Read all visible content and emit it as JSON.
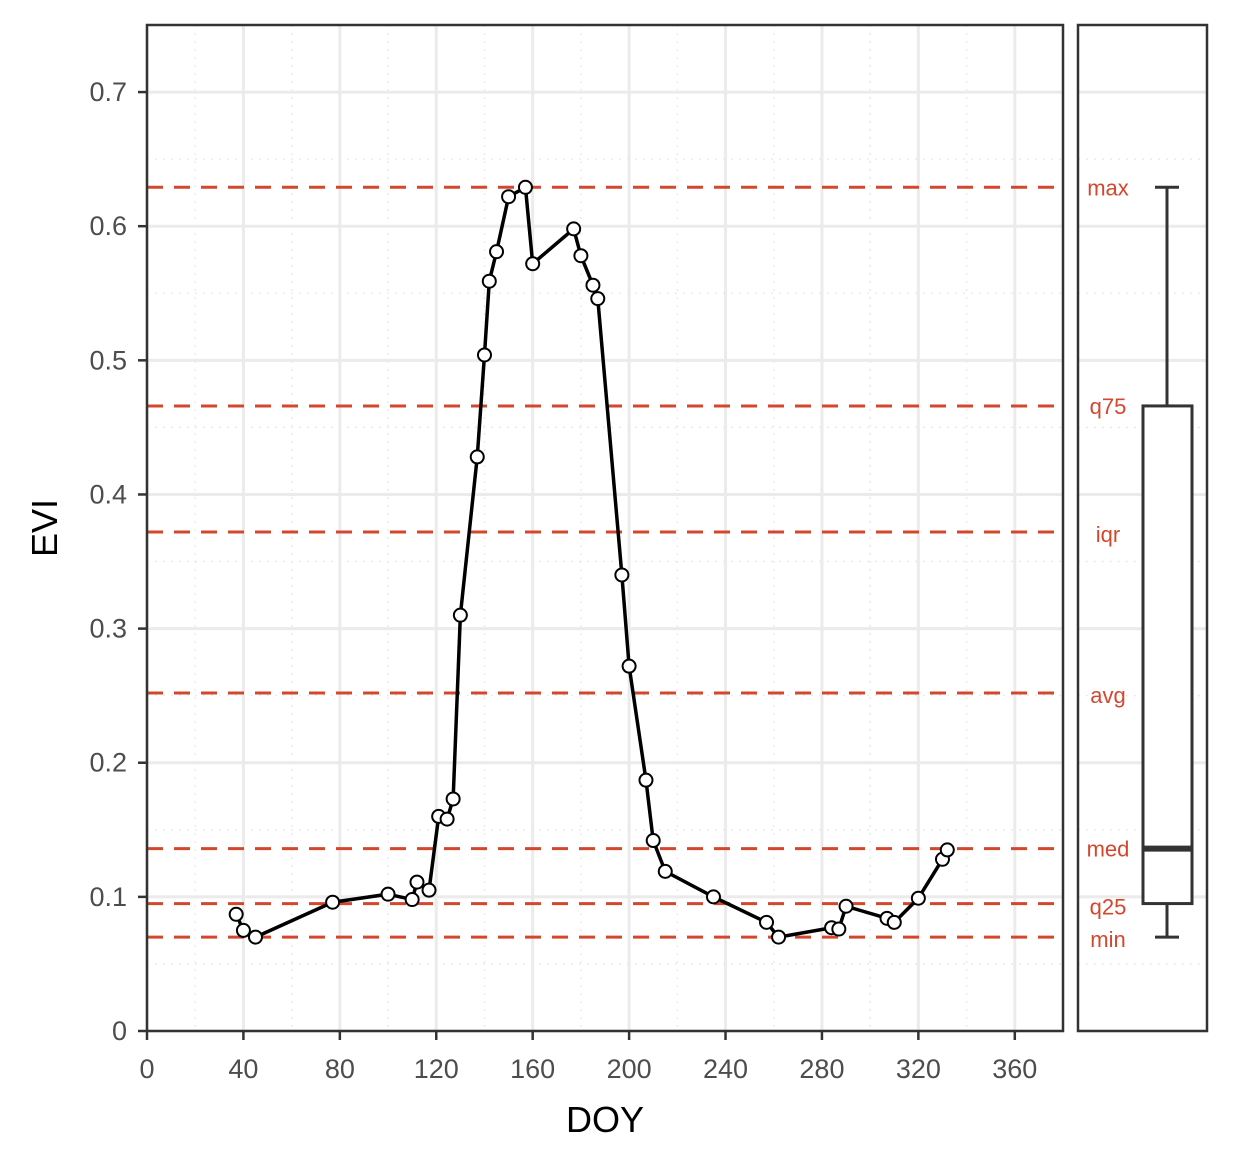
{
  "chart_data": {
    "type": "line",
    "xlabel": "DOY",
    "ylabel": "EVI",
    "xlim": [
      0,
      380
    ],
    "ylim": [
      0,
      0.75
    ],
    "grid": true,
    "x_ticks": [
      "0",
      "40",
      "80",
      "120",
      "160",
      "200",
      "240",
      "280",
      "320",
      "360"
    ],
    "y_ticks": [
      "0",
      "0.1",
      "0.2",
      "0.3",
      "0.4",
      "0.5",
      "0.6",
      "0.7"
    ],
    "series": [
      {
        "color": "#000000",
        "points": [
          [
            37,
            0.087
          ],
          [
            40,
            0.075
          ],
          [
            45,
            0.07
          ],
          [
            77,
            0.096
          ],
          [
            100,
            0.102
          ],
          [
            110,
            0.098
          ],
          [
            112,
            0.111
          ],
          [
            117,
            0.105
          ],
          [
            121,
            0.16
          ],
          [
            124.5,
            0.158
          ],
          [
            127,
            0.173
          ],
          [
            130,
            0.31
          ],
          [
            137,
            0.428
          ],
          [
            140,
            0.504
          ],
          [
            142,
            0.559
          ],
          [
            145,
            0.581
          ],
          [
            150,
            0.622
          ],
          [
            157,
            0.629
          ],
          [
            160,
            0.572
          ],
          [
            177,
            0.598
          ],
          [
            180,
            0.578
          ],
          [
            185,
            0.556
          ],
          [
            187,
            0.546
          ],
          [
            197,
            0.34
          ],
          [
            200,
            0.272
          ],
          [
            207,
            0.187
          ],
          [
            210,
            0.142
          ],
          [
            215,
            0.119
          ],
          [
            235,
            0.1
          ],
          [
            257,
            0.081
          ],
          [
            262,
            0.07
          ],
          [
            284,
            0.077
          ],
          [
            287,
            0.076
          ],
          [
            290,
            0.093
          ],
          [
            307,
            0.084
          ],
          [
            310,
            0.081
          ],
          [
            320,
            0.099
          ],
          [
            330,
            0.128
          ],
          [
            332,
            0.135
          ]
        ]
      }
    ],
    "reference_lines": [
      {
        "label": "max",
        "value": 0.629
      },
      {
        "label": "q75",
        "value": 0.466
      },
      {
        "label": "iqr",
        "value": 0.372
      },
      {
        "label": "avg",
        "value": 0.252
      },
      {
        "label": "med",
        "value": 0.136
      },
      {
        "label": "q25",
        "value": 0.095
      },
      {
        "label": "min",
        "value": 0.07
      }
    ],
    "reference_color": "#d4472f",
    "boxplot": {
      "min": 0.07,
      "q25": 0.095,
      "median": 0.136,
      "q75": 0.466,
      "max": 0.629
    }
  }
}
